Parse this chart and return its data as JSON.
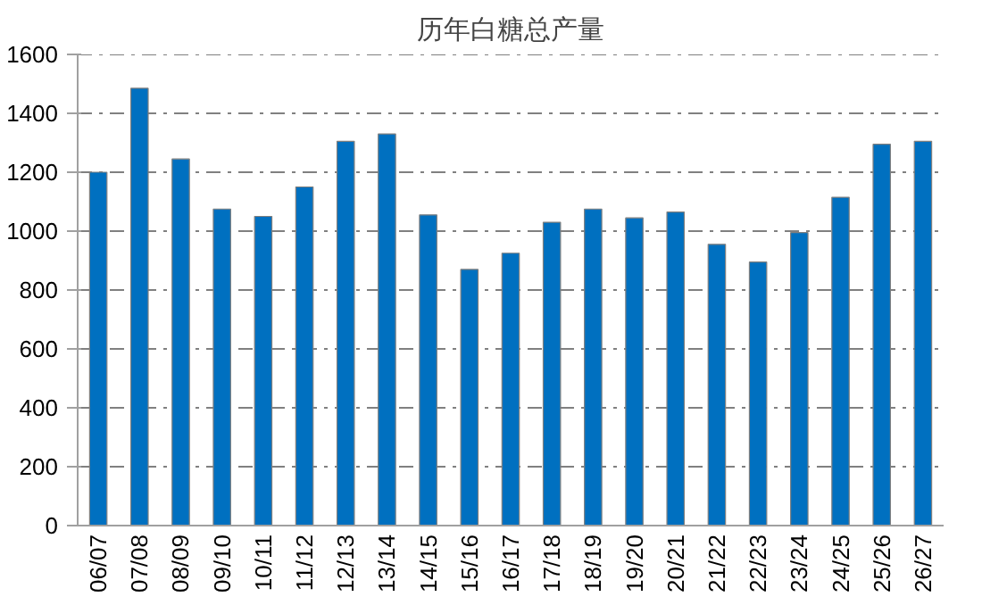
{
  "chart_data": {
    "type": "bar",
    "title": "历年白糖总产量",
    "categories": [
      "06/07",
      "07/08",
      "08/09",
      "09/10",
      "10/11",
      "11/12",
      "12/13",
      "13/14",
      "14/15",
      "15/16",
      "16/17",
      "17/18",
      "18/19",
      "19/20",
      "20/21",
      "21/22",
      "22/23",
      "23/24",
      "24/25",
      "25/26",
      "26/27"
    ],
    "values": [
      1200,
      1485,
      1245,
      1075,
      1050,
      1150,
      1305,
      1330,
      1055,
      870,
      925,
      1030,
      1075,
      1045,
      1065,
      955,
      895,
      995,
      1115,
      1295,
      1305
    ],
    "color": "#0070c0",
    "ylim": [
      0,
      1600
    ],
    "yticks": [
      0,
      200,
      400,
      600,
      800,
      1000,
      1200,
      1400,
      1600
    ],
    "grid": "y"
  }
}
